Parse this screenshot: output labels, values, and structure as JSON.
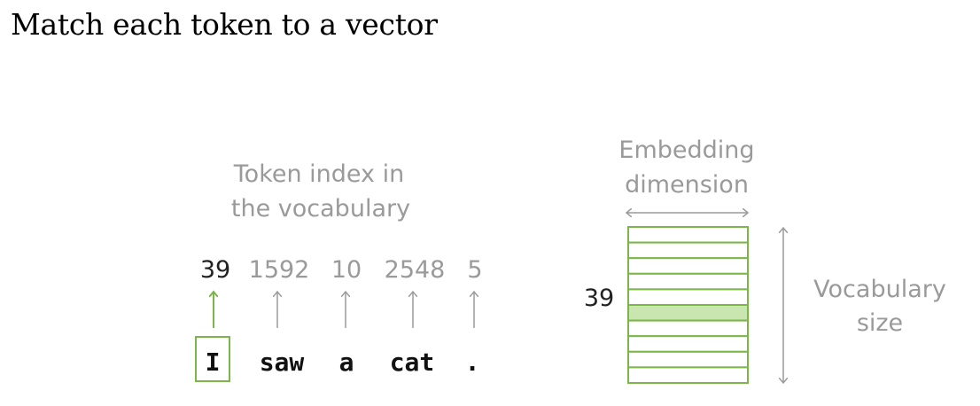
{
  "title": "Match each token to a vector",
  "token_index_caption": [
    "Token index in",
    "the vocabulary"
  ],
  "tokens": [
    {
      "text": "I",
      "index": "39",
      "highlighted": true
    },
    {
      "text": "saw",
      "index": "1592",
      "highlighted": false
    },
    {
      "text": "a",
      "index": "10",
      "highlighted": false
    },
    {
      "text": "cat",
      "index": "2548",
      "highlighted": false
    },
    {
      "text": ".",
      "index": "5",
      "highlighted": false
    }
  ],
  "embedding_caption": [
    "Embedding",
    "dimension"
  ],
  "vocabulary_caption": [
    "Vocabulary",
    "size"
  ],
  "matrix": {
    "row_count": 10,
    "highlighted_row": 5,
    "row_label": "39"
  },
  "colors": {
    "accent": "#7ab648",
    "highlight_fill": "#c9e6b0",
    "gray": "#9a9a9a"
  }
}
